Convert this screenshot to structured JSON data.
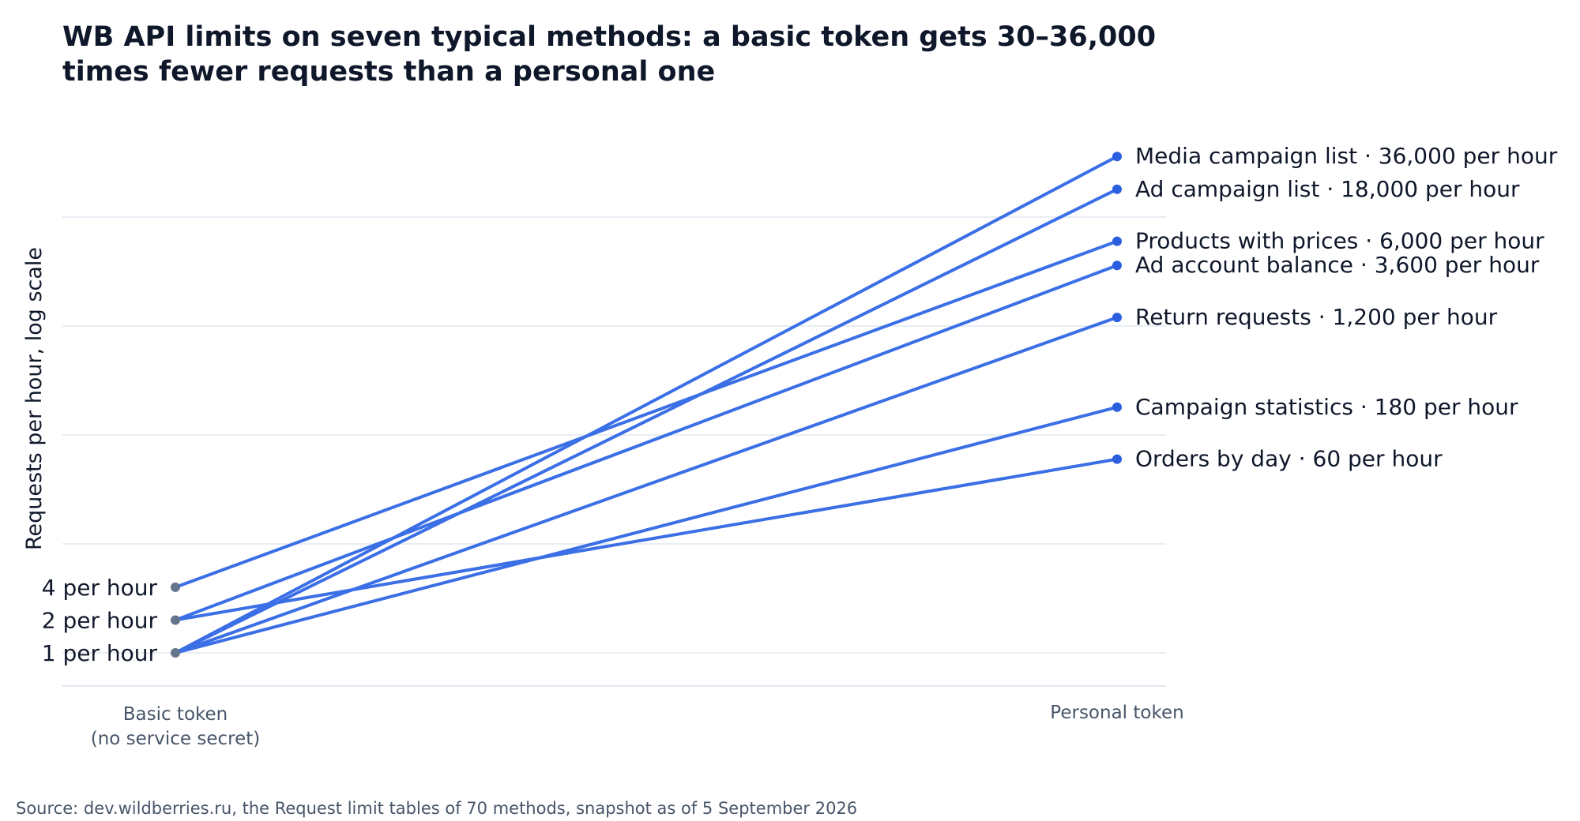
{
  "chart_data": {
    "type": "line",
    "subtype": "slope",
    "title": "WB API limits on seven typical methods: a basic token gets 30–36,000 times fewer requests than a personal one",
    "ylabel": "Requests per hour, log scale",
    "yscale": "log",
    "grid": true,
    "categories": [
      "Basic token\n(no service secret)",
      "Personal token"
    ],
    "left_labels": [
      {
        "value": 4,
        "label": "4 per hour"
      },
      {
        "value": 2,
        "label": "2 per hour"
      },
      {
        "value": 1,
        "label": "1 per hour"
      }
    ],
    "series": [
      {
        "name": "Media campaign list",
        "values": [
          1,
          36000
        ],
        "label": "Media campaign list · 36,000 per hour"
      },
      {
        "name": "Ad campaign list",
        "values": [
          1,
          18000
        ],
        "label": "Ad campaign list · 18,000 per hour"
      },
      {
        "name": "Products with prices",
        "values": [
          4,
          6000
        ],
        "label": "Products with prices · 6,000 per hour"
      },
      {
        "name": "Ad account balance",
        "values": [
          2,
          3600
        ],
        "label": "Ad account balance · 3,600 per hour"
      },
      {
        "name": "Return requests",
        "values": [
          1,
          1200
        ],
        "label": "Return requests · 1,200 per hour"
      },
      {
        "name": "Campaign statistics",
        "values": [
          1,
          180
        ],
        "label": "Campaign statistics · 180 per hour"
      },
      {
        "name": "Orders by day",
        "values": [
          2,
          60
        ],
        "label": "Orders by day · 60 per hour"
      }
    ],
    "colors": {
      "line": "#3b6fe6",
      "right_dot": "#2b5fe0",
      "left_dot": "#64748b",
      "grid": "#e2e8f0"
    }
  },
  "source": "Source: dev.wildberries.ru, the Request limit tables of 70 methods, snapshot as of 5 September 2026"
}
